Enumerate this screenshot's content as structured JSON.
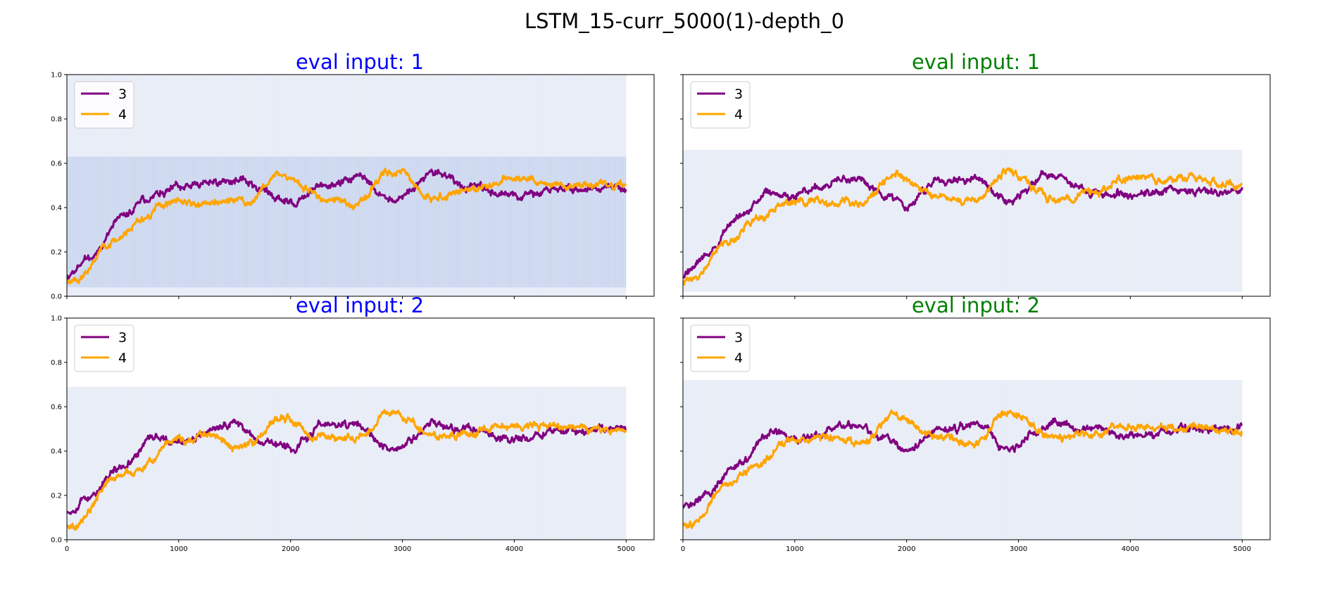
{
  "figure_title": "LSTM_15-curr_5000(1)-depth_0",
  "chart_data": [
    {
      "type": "line",
      "title": "eval input: 1",
      "title_color": "#0000ff",
      "xlim": [
        0,
        5250
      ],
      "ylim": [
        0.0,
        1.0
      ],
      "xticks": [
        "0",
        "1000",
        "2000",
        "3000",
        "4000",
        "5000"
      ],
      "yticks": [
        "0.0",
        "0.2",
        "0.4",
        "0.6",
        "0.8",
        "1.0"
      ],
      "show_xtick_labels": false,
      "show_ytick_labels": true,
      "legend_placement": "upper-left",
      "band": {
        "x": [
          0,
          5000
        ],
        "y": [
          0.0,
          1.0
        ],
        "inner_y": [
          0.04,
          0.63
        ],
        "color": "#c9d3ec",
        "inner_color": "#b4c4ea"
      },
      "series": [
        {
          "name": "3",
          "color": "#800080",
          "seed": 11,
          "anchors": [
            [
              0,
              0.1
            ],
            [
              200,
              0.18
            ],
            [
              500,
              0.36
            ],
            [
              800,
              0.46
            ],
            [
              1000,
              0.47
            ],
            [
              1500,
              0.53
            ],
            [
              1800,
              0.47
            ],
            [
              2000,
              0.42
            ],
            [
              2300,
              0.5
            ],
            [
              2600,
              0.53
            ],
            [
              2900,
              0.42
            ],
            [
              3300,
              0.55
            ],
            [
              3600,
              0.49
            ],
            [
              4000,
              0.45
            ],
            [
              4500,
              0.48
            ],
            [
              5000,
              0.49
            ]
          ]
        },
        {
          "name": "4",
          "color": "#ffa500",
          "seed": 23,
          "anchors": [
            [
              0,
              0.07
            ],
            [
              100,
              0.08
            ],
            [
              400,
              0.25
            ],
            [
              700,
              0.36
            ],
            [
              900,
              0.42
            ],
            [
              1200,
              0.42
            ],
            [
              1600,
              0.42
            ],
            [
              1900,
              0.55
            ],
            [
              2300,
              0.45
            ],
            [
              2600,
              0.42
            ],
            [
              2900,
              0.57
            ],
            [
              3300,
              0.44
            ],
            [
              3600,
              0.47
            ],
            [
              4000,
              0.53
            ],
            [
              4500,
              0.52
            ],
            [
              5000,
              0.51
            ]
          ]
        }
      ]
    },
    {
      "type": "line",
      "title": "eval input: 1",
      "title_color": "#008000",
      "xlim": [
        0,
        5250
      ],
      "ylim": [
        0.0,
        1.0
      ],
      "xticks": [
        "0",
        "1000",
        "2000",
        "3000",
        "4000",
        "5000"
      ],
      "yticks": [
        "0.0",
        "0.2",
        "0.4",
        "0.6",
        "0.8",
        "1.0"
      ],
      "show_xtick_labels": false,
      "show_ytick_labels": false,
      "legend_placement": "upper-left",
      "band": {
        "x": [
          0,
          5000
        ],
        "y": [
          0.02,
          0.66
        ],
        "color": "#c9d3ec"
      },
      "series": [
        {
          "name": "3",
          "color": "#800080",
          "seed": 37,
          "anchors": [
            [
              0,
              0.1
            ],
            [
              200,
              0.18
            ],
            [
              500,
              0.36
            ],
            [
              800,
              0.46
            ],
            [
              1000,
              0.46
            ],
            [
              1500,
              0.53
            ],
            [
              1800,
              0.47
            ],
            [
              2000,
              0.42
            ],
            [
              2300,
              0.53
            ],
            [
              2600,
              0.53
            ],
            [
              2900,
              0.42
            ],
            [
              3300,
              0.55
            ],
            [
              3600,
              0.48
            ],
            [
              4000,
              0.46
            ],
            [
              4500,
              0.48
            ],
            [
              5000,
              0.49
            ]
          ]
        },
        {
          "name": "4",
          "color": "#ffa500",
          "seed": 41,
          "anchors": [
            [
              0,
              0.07
            ],
            [
              100,
              0.08
            ],
            [
              400,
              0.25
            ],
            [
              700,
              0.36
            ],
            [
              900,
              0.42
            ],
            [
              1200,
              0.42
            ],
            [
              1600,
              0.42
            ],
            [
              1900,
              0.55
            ],
            [
              2300,
              0.45
            ],
            [
              2600,
              0.42
            ],
            [
              2900,
              0.57
            ],
            [
              3300,
              0.44
            ],
            [
              3600,
              0.47
            ],
            [
              4000,
              0.53
            ],
            [
              4500,
              0.52
            ],
            [
              5000,
              0.5
            ]
          ]
        }
      ]
    },
    {
      "type": "line",
      "title": "eval input: 2",
      "title_color": "#0000ff",
      "xlim": [
        0,
        5250
      ],
      "ylim": [
        0.0,
        1.0
      ],
      "xticks": [
        "0",
        "1000",
        "2000",
        "3000",
        "4000",
        "5000"
      ],
      "yticks": [
        "0.0",
        "0.2",
        "0.4",
        "0.6",
        "0.8",
        "1.0"
      ],
      "show_xtick_labels": true,
      "show_ytick_labels": true,
      "legend_placement": "upper-left",
      "band": {
        "x": [
          0,
          5000
        ],
        "y": [
          0.0,
          0.69
        ],
        "color": "#c9d3ec"
      },
      "series": [
        {
          "name": "3",
          "color": "#800080",
          "seed": 53,
          "anchors": [
            [
              0,
              0.13
            ],
            [
              200,
              0.19
            ],
            [
              500,
              0.34
            ],
            [
              800,
              0.48
            ],
            [
              1000,
              0.45
            ],
            [
              1500,
              0.52
            ],
            [
              1800,
              0.44
            ],
            [
              2000,
              0.41
            ],
            [
              2300,
              0.52
            ],
            [
              2600,
              0.52
            ],
            [
              2900,
              0.4
            ],
            [
              3300,
              0.52
            ],
            [
              3600,
              0.5
            ],
            [
              4000,
              0.47
            ],
            [
              4500,
              0.5
            ],
            [
              5000,
              0.51
            ]
          ]
        },
        {
          "name": "4",
          "color": "#ffa500",
          "seed": 67,
          "anchors": [
            [
              0,
              0.07
            ],
            [
              120,
              0.08
            ],
            [
              400,
              0.27
            ],
            [
              700,
              0.34
            ],
            [
              900,
              0.44
            ],
            [
              1200,
              0.46
            ],
            [
              1600,
              0.44
            ],
            [
              1900,
              0.56
            ],
            [
              2300,
              0.47
            ],
            [
              2600,
              0.45
            ],
            [
              2900,
              0.58
            ],
            [
              3300,
              0.47
            ],
            [
              3600,
              0.48
            ],
            [
              4000,
              0.52
            ],
            [
              4500,
              0.51
            ],
            [
              5000,
              0.49
            ]
          ]
        }
      ]
    },
    {
      "type": "line",
      "title": "eval input: 2",
      "title_color": "#008000",
      "xlim": [
        0,
        5250
      ],
      "ylim": [
        0.0,
        1.0
      ],
      "xticks": [
        "0",
        "1000",
        "2000",
        "3000",
        "4000",
        "5000"
      ],
      "yticks": [
        "0.0",
        "0.2",
        "0.4",
        "0.6",
        "0.8",
        "1.0"
      ],
      "show_xtick_labels": true,
      "show_ytick_labels": false,
      "legend_placement": "upper-left",
      "band": {
        "x": [
          0,
          5000
        ],
        "y": [
          0.0,
          0.72
        ],
        "color": "#c9d3ec"
      },
      "series": [
        {
          "name": "3",
          "color": "#800080",
          "seed": 71,
          "anchors": [
            [
              0,
              0.15
            ],
            [
              200,
              0.2
            ],
            [
              500,
              0.34
            ],
            [
              800,
              0.48
            ],
            [
              1000,
              0.45
            ],
            [
              1500,
              0.52
            ],
            [
              1800,
              0.44
            ],
            [
              2000,
              0.41
            ],
            [
              2300,
              0.52
            ],
            [
              2600,
              0.52
            ],
            [
              2900,
              0.4
            ],
            [
              3300,
              0.52
            ],
            [
              3600,
              0.5
            ],
            [
              4000,
              0.47
            ],
            [
              4500,
              0.5
            ],
            [
              5000,
              0.51
            ]
          ]
        },
        {
          "name": "4",
          "color": "#ffa500",
          "seed": 83,
          "anchors": [
            [
              0,
              0.07
            ],
            [
              120,
              0.08
            ],
            [
              400,
              0.27
            ],
            [
              700,
              0.34
            ],
            [
              900,
              0.44
            ],
            [
              1200,
              0.46
            ],
            [
              1600,
              0.44
            ],
            [
              1900,
              0.56
            ],
            [
              2300,
              0.47
            ],
            [
              2600,
              0.45
            ],
            [
              2900,
              0.58
            ],
            [
              3300,
              0.47
            ],
            [
              3600,
              0.48
            ],
            [
              4000,
              0.52
            ],
            [
              4500,
              0.51
            ],
            [
              5000,
              0.48
            ]
          ]
        }
      ]
    }
  ]
}
